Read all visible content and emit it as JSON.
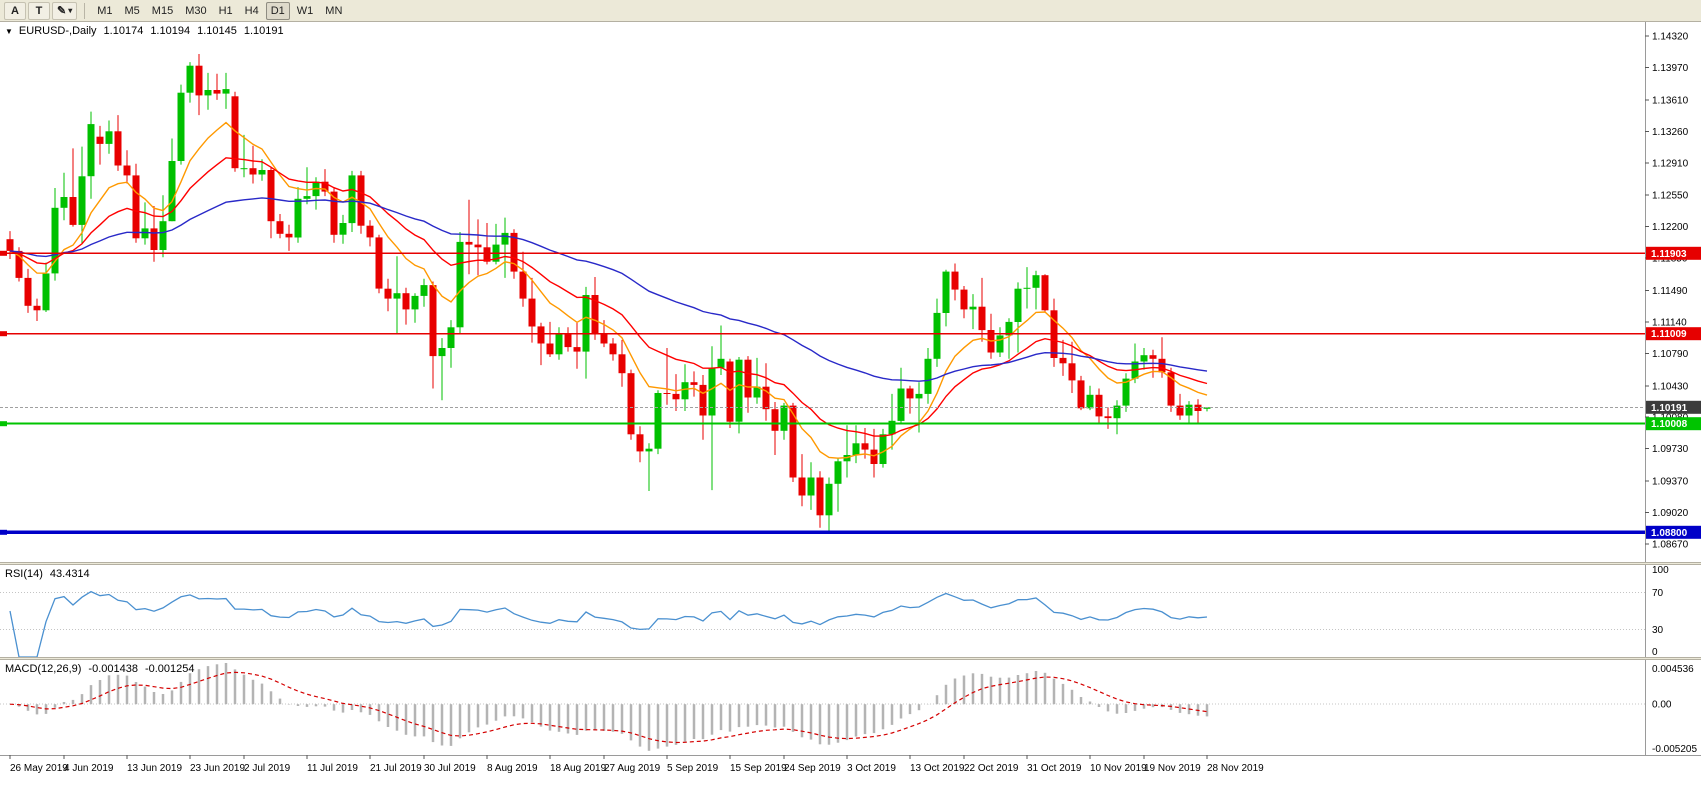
{
  "toolbar": {
    "buttons_left": [
      {
        "label": "A",
        "name": "toolbar-button-a"
      },
      {
        "label": "T",
        "name": "toolbar-button-t"
      }
    ],
    "tools_button": {
      "icon": "pencil-icon",
      "caret": "caret-down-icon"
    },
    "timeframes": [
      "M1",
      "M5",
      "M15",
      "M30",
      "H1",
      "H4",
      "D1",
      "W1",
      "MN"
    ],
    "selected_timeframe": "D1"
  },
  "header": {
    "symbol": "EURUSD-,Daily",
    "open": "1.10174",
    "high": "1.10194",
    "low": "1.10145",
    "close": "1.10191"
  },
  "price_axis": {
    "ticks": [
      "1.14320",
      "1.13970",
      "1.13610",
      "1.13260",
      "1.12910",
      "1.12550",
      "1.12200",
      "1.11850",
      "1.11490",
      "1.11140",
      "1.10790",
      "1.10430",
      "1.10080",
      "1.09730",
      "1.09370",
      "1.09020",
      "1.08670"
    ]
  },
  "hlines": [
    {
      "label": "1.11903",
      "price": 1.11903,
      "color": "#e60000",
      "tag_bg": "#e60000",
      "thickness": 1.5
    },
    {
      "label": "1.11009",
      "price": 1.11009,
      "color": "#e60000",
      "tag_bg": "#e60000",
      "thickness": 1.5
    },
    {
      "label": "1.10008",
      "price": 1.10008,
      "color": "#00c400",
      "tag_bg": "#00c400",
      "thickness": 2
    },
    {
      "label": "1.08800",
      "price": 1.088,
      "color": "#0000c8",
      "tag_bg": "#0000c8",
      "thickness": 3.5
    }
  ],
  "current_price": {
    "label": "1.10191",
    "price": 1.10191,
    "tag_bg": "#3c3c3c",
    "line_color": "#a0a0a0"
  },
  "date_axis": {
    "labels": [
      {
        "text": "26 May 2019",
        "index": 0
      },
      {
        "text": "4 Jun 2019",
        "index": 6
      },
      {
        "text": "13 Jun 2019",
        "index": 13
      },
      {
        "text": "23 Jun 2019",
        "index": 20
      },
      {
        "text": "2 Jul 2019",
        "index": 26
      },
      {
        "text": "11 Jul 2019",
        "index": 33
      },
      {
        "text": "21 Jul 2019",
        "index": 40
      },
      {
        "text": "30 Jul 2019",
        "index": 46
      },
      {
        "text": "8 Aug 2019",
        "index": 53
      },
      {
        "text": "18 Aug 2019",
        "index": 60
      },
      {
        "text": "27 Aug 2019",
        "index": 66
      },
      {
        "text": "5 Sep 2019",
        "index": 73
      },
      {
        "text": "15 Sep 2019",
        "index": 80
      },
      {
        "text": "24 Sep 2019",
        "index": 86
      },
      {
        "text": "3 Oct 2019",
        "index": 93
      },
      {
        "text": "13 Oct 2019",
        "index": 100
      },
      {
        "text": "22 Oct 2019",
        "index": 106
      },
      {
        "text": "31 Oct 2019",
        "index": 113
      },
      {
        "text": "10 Nov 2019",
        "index": 120
      },
      {
        "text": "19 Nov 2019",
        "index": 126
      },
      {
        "text": "28 Nov 2019",
        "index": 133
      }
    ]
  },
  "rsi": {
    "title": "RSI(14)",
    "value": "43.4314",
    "period": 14,
    "axis": [
      "100",
      "70",
      "30",
      "0"
    ],
    "levels": [
      70,
      30
    ],
    "line_color": "#4a90d0"
  },
  "macd": {
    "title": "MACD(12,26,9)",
    "value_main": "-0.001438",
    "value_signal": "-0.001254",
    "axis_max": "0.004536",
    "axis_zero": "0.00",
    "axis_min": "-0.005205",
    "range": [
      -0.005205,
      0.004536
    ],
    "hist_color": "#b4b4b4",
    "signal_color": "#d40000"
  },
  "chart_data": {
    "type": "candlestick",
    "symbol": "EURUSD",
    "timeframe": "Daily",
    "price_range": [
      1.0847,
      1.14476
    ],
    "bull_color": "#00c000",
    "bear_color": "#e80000",
    "moving_averages": [
      {
        "name": "fast",
        "period": 10,
        "color": "#ff9900"
      },
      {
        "name": "medium",
        "period": 21,
        "color": "#ff0000"
      },
      {
        "name": "slow",
        "period": 55,
        "color": "#2929c8"
      }
    ],
    "candles": [
      [
        1.1206,
        1.1215,
        1.1184,
        1.1193
      ],
      [
        1.1193,
        1.1197,
        1.1159,
        1.1163
      ],
      [
        1.1163,
        1.1173,
        1.1124,
        1.1132
      ],
      [
        1.1132,
        1.114,
        1.1115,
        1.1127
      ],
      [
        1.1127,
        1.118,
        1.1125,
        1.1168
      ],
      [
        1.1168,
        1.1263,
        1.116,
        1.1241
      ],
      [
        1.1241,
        1.128,
        1.1227,
        1.1253
      ],
      [
        1.1253,
        1.1307,
        1.122,
        1.1222
      ],
      [
        1.1222,
        1.1309,
        1.1201,
        1.1276
      ],
      [
        1.1276,
        1.1348,
        1.1251,
        1.1334
      ],
      [
        1.132,
        1.1332,
        1.1289,
        1.1312
      ],
      [
        1.1312,
        1.1338,
        1.1301,
        1.1326
      ],
      [
        1.1326,
        1.1344,
        1.1282,
        1.1288
      ],
      [
        1.1288,
        1.1305,
        1.1268,
        1.1277
      ],
      [
        1.1277,
        1.129,
        1.1202,
        1.1207
      ],
      [
        1.1207,
        1.1247,
        1.12,
        1.1218
      ],
      [
        1.1218,
        1.1243,
        1.1181,
        1.1194
      ],
      [
        1.1194,
        1.1255,
        1.1186,
        1.1226
      ],
      [
        1.1226,
        1.1318,
        1.1226,
        1.1293
      ],
      [
        1.1293,
        1.1378,
        1.1289,
        1.1369
      ],
      [
        1.1369,
        1.1403,
        1.1358,
        1.1399
      ],
      [
        1.1399,
        1.1412,
        1.1344,
        1.1366
      ],
      [
        1.1366,
        1.1391,
        1.135,
        1.1372
      ],
      [
        1.1372,
        1.139,
        1.1361,
        1.1368
      ],
      [
        1.1368,
        1.1391,
        1.1351,
        1.1373
      ],
      [
        1.1365,
        1.137,
        1.1281,
        1.1285
      ],
      [
        1.1285,
        1.1322,
        1.1275,
        1.1285
      ],
      [
        1.1285,
        1.131,
        1.1268,
        1.1278
      ],
      [
        1.1278,
        1.1295,
        1.1271,
        1.1283
      ],
      [
        1.1283,
        1.1286,
        1.1207,
        1.1226
      ],
      [
        1.1226,
        1.1234,
        1.1207,
        1.1212
      ],
      [
        1.1212,
        1.1222,
        1.1193,
        1.1208
      ],
      [
        1.1208,
        1.1264,
        1.1202,
        1.1251
      ],
      [
        1.1251,
        1.1286,
        1.1245,
        1.1254
      ],
      [
        1.1254,
        1.1275,
        1.1239,
        1.127
      ],
      [
        1.127,
        1.1284,
        1.1254,
        1.1259
      ],
      [
        1.1259,
        1.1263,
        1.1202,
        1.1211
      ],
      [
        1.1211,
        1.1233,
        1.1201,
        1.1224
      ],
      [
        1.1224,
        1.1282,
        1.1214,
        1.1277
      ],
      [
        1.1277,
        1.1282,
        1.1212,
        1.1221
      ],
      [
        1.1221,
        1.1227,
        1.1198,
        1.1208
      ],
      [
        1.1208,
        1.1211,
        1.1146,
        1.1151
      ],
      [
        1.1151,
        1.1162,
        1.1126,
        1.114
      ],
      [
        1.114,
        1.1187,
        1.1101,
        1.1146
      ],
      [
        1.1146,
        1.1152,
        1.1111,
        1.1128
      ],
      [
        1.1128,
        1.1146,
        1.1113,
        1.1143
      ],
      [
        1.1143,
        1.1162,
        1.1131,
        1.1155
      ],
      [
        1.1155,
        1.1159,
        1.104,
        1.1076
      ],
      [
        1.1076,
        1.1096,
        1.1027,
        1.1085
      ],
      [
        1.1085,
        1.1116,
        1.1063,
        1.1108
      ],
      [
        1.1108,
        1.1214,
        1.1101,
        1.1203
      ],
      [
        1.1203,
        1.125,
        1.1167,
        1.12
      ],
      [
        1.12,
        1.1228,
        1.1166,
        1.1197
      ],
      [
        1.1197,
        1.1224,
        1.1178,
        1.1181
      ],
      [
        1.1181,
        1.1223,
        1.1178,
        1.12
      ],
      [
        1.12,
        1.123,
        1.1163,
        1.1213
      ],
      [
        1.1213,
        1.1217,
        1.1162,
        1.117
      ],
      [
        1.117,
        1.1192,
        1.1131,
        1.114
      ],
      [
        1.114,
        1.1163,
        1.1091,
        1.1109
      ],
      [
        1.1109,
        1.1113,
        1.1066,
        1.109
      ],
      [
        1.109,
        1.1114,
        1.1075,
        1.1078
      ],
      [
        1.1078,
        1.1108,
        1.1072,
        1.11
      ],
      [
        1.11,
        1.1108,
        1.1081,
        1.1086
      ],
      [
        1.1086,
        1.1113,
        1.1062,
        1.1081
      ],
      [
        1.1081,
        1.1153,
        1.1051,
        1.1144
      ],
      [
        1.1144,
        1.1164,
        1.1094,
        1.1101
      ],
      [
        1.1101,
        1.1116,
        1.1086,
        1.109
      ],
      [
        1.109,
        1.1096,
        1.1071,
        1.1078
      ],
      [
        1.1078,
        1.1094,
        1.1042,
        1.1057
      ],
      [
        1.1057,
        1.1061,
        1.0983,
        1.0989
      ],
      [
        1.0989,
        1.0998,
        1.0958,
        1.097
      ],
      [
        1.097,
        1.0979,
        1.0926,
        1.0973
      ],
      [
        1.0973,
        1.1038,
        1.0967,
        1.1035
      ],
      [
        1.1035,
        1.1085,
        1.1022,
        1.1034
      ],
      [
        1.1034,
        1.1056,
        1.1015,
        1.1028
      ],
      [
        1.1028,
        1.1067,
        1.1015,
        1.1047
      ],
      [
        1.1047,
        1.1059,
        1.1031,
        1.1044
      ],
      [
        1.1044,
        1.1055,
        1.0983,
        1.101
      ],
      [
        1.101,
        1.1087,
        1.0927,
        1.1063
      ],
      [
        1.1063,
        1.111,
        1.1055,
        1.1073
      ],
      [
        1.107,
        1.1073,
        1.0996,
        1.1003
      ],
      [
        1.1003,
        1.1075,
        1.099,
        1.1072
      ],
      [
        1.1072,
        1.1076,
        1.1013,
        1.103
      ],
      [
        1.103,
        1.1074,
        1.1023,
        1.1042
      ],
      [
        1.1042,
        1.1068,
        1.1004,
        1.1017
      ],
      [
        1.1017,
        1.1025,
        1.0966,
        1.0993
      ],
      [
        1.0993,
        1.1024,
        1.0983,
        1.1021
      ],
      [
        1.1021,
        1.1024,
        1.0936,
        1.0941
      ],
      [
        1.0941,
        1.0967,
        1.0909,
        1.0921
      ],
      [
        1.0921,
        1.0958,
        1.0905,
        1.0941
      ],
      [
        1.0941,
        1.0948,
        1.0885,
        1.0899
      ],
      [
        1.0899,
        1.0941,
        1.0879,
        1.0934
      ],
      [
        1.0934,
        1.0963,
        1.0903,
        1.0959
      ],
      [
        1.0959,
        1.0999,
        1.0941,
        1.0966
      ],
      [
        1.0966,
        1.0999,
        1.0957,
        1.0979
      ],
      [
        1.0979,
        1.0996,
        1.0962,
        1.0972
      ],
      [
        1.0972,
        1.0995,
        1.0941,
        1.0956
      ],
      [
        1.0956,
        1.0995,
        1.0952,
        1.0989
      ],
      [
        1.0989,
        1.1034,
        1.0972,
        1.1004
      ],
      [
        1.1004,
        1.1063,
        1.1002,
        1.104
      ],
      [
        1.104,
        1.1043,
        1.1012,
        1.1029
      ],
      [
        1.1029,
        1.1047,
        1.0991,
        1.1034
      ],
      [
        1.1034,
        1.1085,
        1.1023,
        1.1073
      ],
      [
        1.1073,
        1.114,
        1.1064,
        1.1124
      ],
      [
        1.1124,
        1.1172,
        1.1109,
        1.117
      ],
      [
        1.117,
        1.1179,
        1.1138,
        1.115
      ],
      [
        1.115,
        1.1154,
        1.1118,
        1.1128
      ],
      [
        1.1128,
        1.1145,
        1.1106,
        1.1131
      ],
      [
        1.1131,
        1.1163,
        1.1092,
        1.1105
      ],
      [
        1.1105,
        1.1123,
        1.1073,
        1.108
      ],
      [
        1.108,
        1.1108,
        1.1075,
        1.1099
      ],
      [
        1.1099,
        1.1118,
        1.1073,
        1.1114
      ],
      [
        1.1114,
        1.1158,
        1.108,
        1.1151
      ],
      [
        1.1151,
        1.1175,
        1.1129,
        1.1152
      ],
      [
        1.1152,
        1.1171,
        1.1128,
        1.1166
      ],
      [
        1.1166,
        1.1167,
        1.1125,
        1.1127
      ],
      [
        1.1127,
        1.114,
        1.1064,
        1.1074
      ],
      [
        1.1074,
        1.1094,
        1.1054,
        1.1068
      ],
      [
        1.1068,
        1.1092,
        1.1035,
        1.1049
      ],
      [
        1.1049,
        1.1054,
        1.1016,
        1.1018
      ],
      [
        1.1018,
        1.1043,
        1.1016,
        1.1033
      ],
      [
        1.1033,
        1.104,
        1.1002,
        1.1009
      ],
      [
        1.1009,
        1.1019,
        1.0995,
        1.1007
      ],
      [
        1.1007,
        1.1027,
        1.0989,
        1.1021
      ],
      [
        1.1021,
        1.1057,
        1.1014,
        1.1051
      ],
      [
        1.1051,
        1.109,
        1.1046,
        1.107
      ],
      [
        1.107,
        1.1085,
        1.1061,
        1.1077
      ],
      [
        1.1077,
        1.1083,
        1.1052,
        1.1073
      ],
      [
        1.1073,
        1.1097,
        1.1052,
        1.1058
      ],
      [
        1.1058,
        1.1063,
        1.1014,
        1.1021
      ],
      [
        1.1021,
        1.1034,
        1.1005,
        1.101
      ],
      [
        1.101,
        1.1026,
        1.1001,
        1.1022
      ],
      [
        1.1022,
        1.1028,
        1.10008,
        1.1015
      ],
      [
        1.10174,
        1.10194,
        1.10145,
        1.10191
      ]
    ]
  }
}
